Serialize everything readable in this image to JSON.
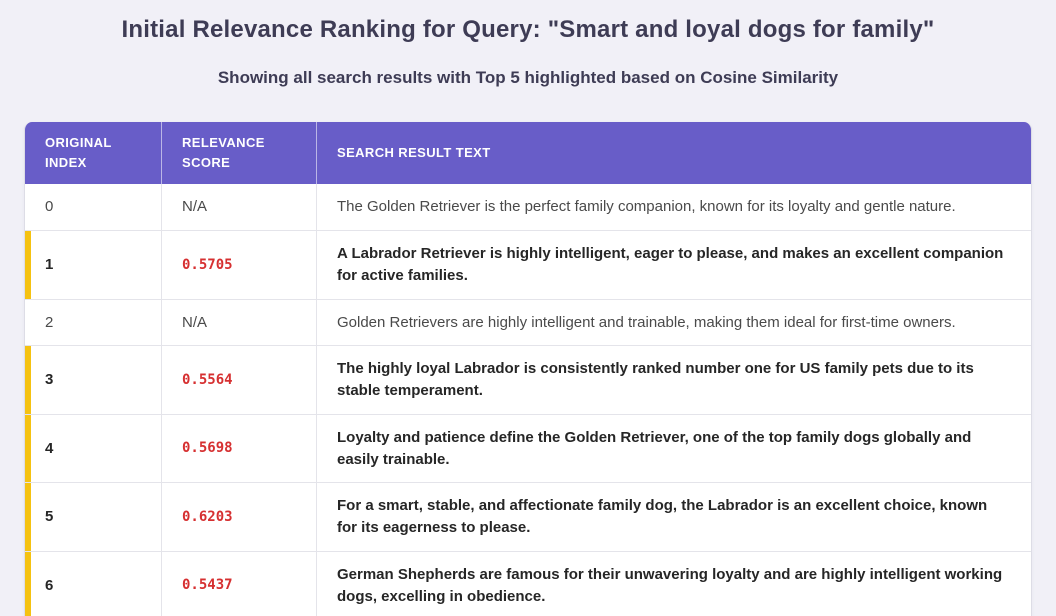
{
  "page": {
    "title": "Initial Relevance Ranking for Query: \"Smart and loyal dogs for family\"",
    "subtitle": "Showing all search results with Top 5 highlighted based on Cosine Similarity"
  },
  "colors": {
    "page_background": "#f1f0f7",
    "header_background": "#685dc8",
    "header_text": "#ffffff",
    "title_text": "#3e3c55",
    "highlight_border": "#f5c211",
    "score_text": "#d63031",
    "body_text": "#4a4a4a",
    "highlighted_body_text": "#262626"
  },
  "table": {
    "columns": [
      "ORIGINAL INDEX",
      "RELEVANCE SCORE",
      "SEARCH RESULT TEXT"
    ],
    "rows": [
      {
        "index": "0",
        "score": "N/A",
        "text": "The Golden Retriever is the perfect family companion, known for its loyalty and gentle nature.",
        "highlighted": false
      },
      {
        "index": "1",
        "score": "0.5705",
        "text": "A Labrador Retriever is highly intelligent, eager to please, and makes an excellent companion for active families.",
        "highlighted": true
      },
      {
        "index": "2",
        "score": "N/A",
        "text": "Golden Retrievers are highly intelligent and trainable, making them ideal for first-time owners.",
        "highlighted": false
      },
      {
        "index": "3",
        "score": "0.5564",
        "text": "The highly loyal Labrador is consistently ranked number one for US family pets due to its stable temperament.",
        "highlighted": true
      },
      {
        "index": "4",
        "score": "0.5698",
        "text": "Loyalty and patience define the Golden Retriever, one of the top family dogs globally and easily trainable.",
        "highlighted": true
      },
      {
        "index": "5",
        "score": "0.6203",
        "text": "For a smart, stable, and affectionate family dog, the Labrador is an excellent choice, known for its eagerness to please.",
        "highlighted": true
      },
      {
        "index": "6",
        "score": "0.5437",
        "text": "German Shepherds are famous for their unwavering loyalty and are highly intelligent working dogs, excelling in obedience.",
        "highlighted": true
      }
    ]
  }
}
